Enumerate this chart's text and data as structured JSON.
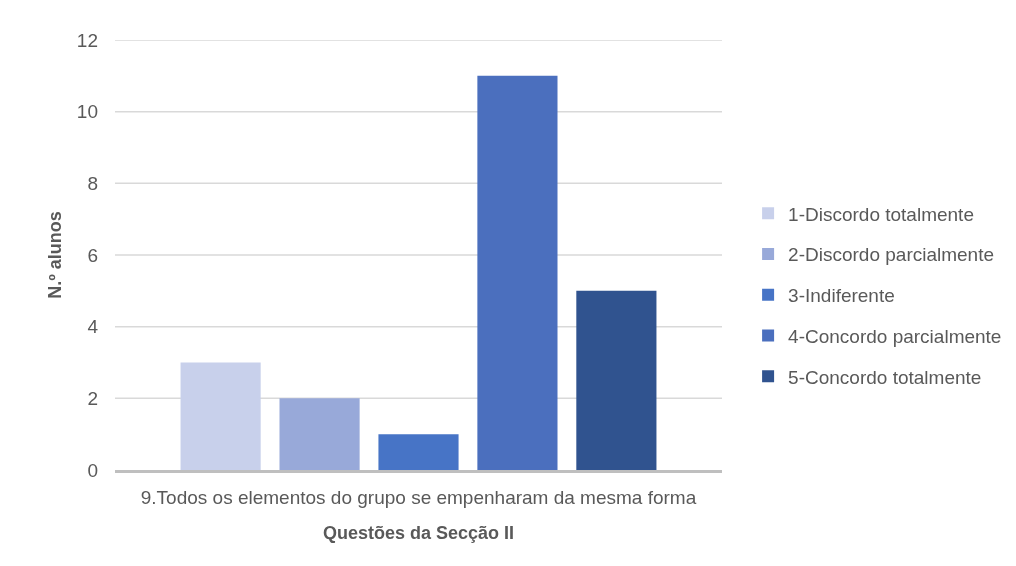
{
  "chart_data": {
    "type": "bar",
    "categories": [
      "9.Todos os elementos do grupo se empenharam da mesma forma"
    ],
    "series": [
      {
        "name": "1-Discordo totalmente",
        "color": "#c8d0eb",
        "values": [
          3
        ]
      },
      {
        "name": "2-Discordo parcialmente",
        "color": "#98a9d9",
        "values": [
          2
        ]
      },
      {
        "name": "3-Indiferente",
        "color": "#4774c6",
        "values": [
          1
        ]
      },
      {
        "name": "4-Concordo parcialmente",
        "color": "#4b6fbe",
        "values": [
          11
        ]
      },
      {
        "name": "5-Concordo totalmente",
        "color": "#30538f",
        "values": [
          5
        ]
      }
    ],
    "xlabel": "Questões da Secção II",
    "ylabel": "N.º alunos",
    "ylim": [
      0,
      12
    ],
    "yticks": [
      0,
      2,
      4,
      6,
      8,
      10,
      12
    ],
    "grid": "y",
    "legend": "right"
  }
}
